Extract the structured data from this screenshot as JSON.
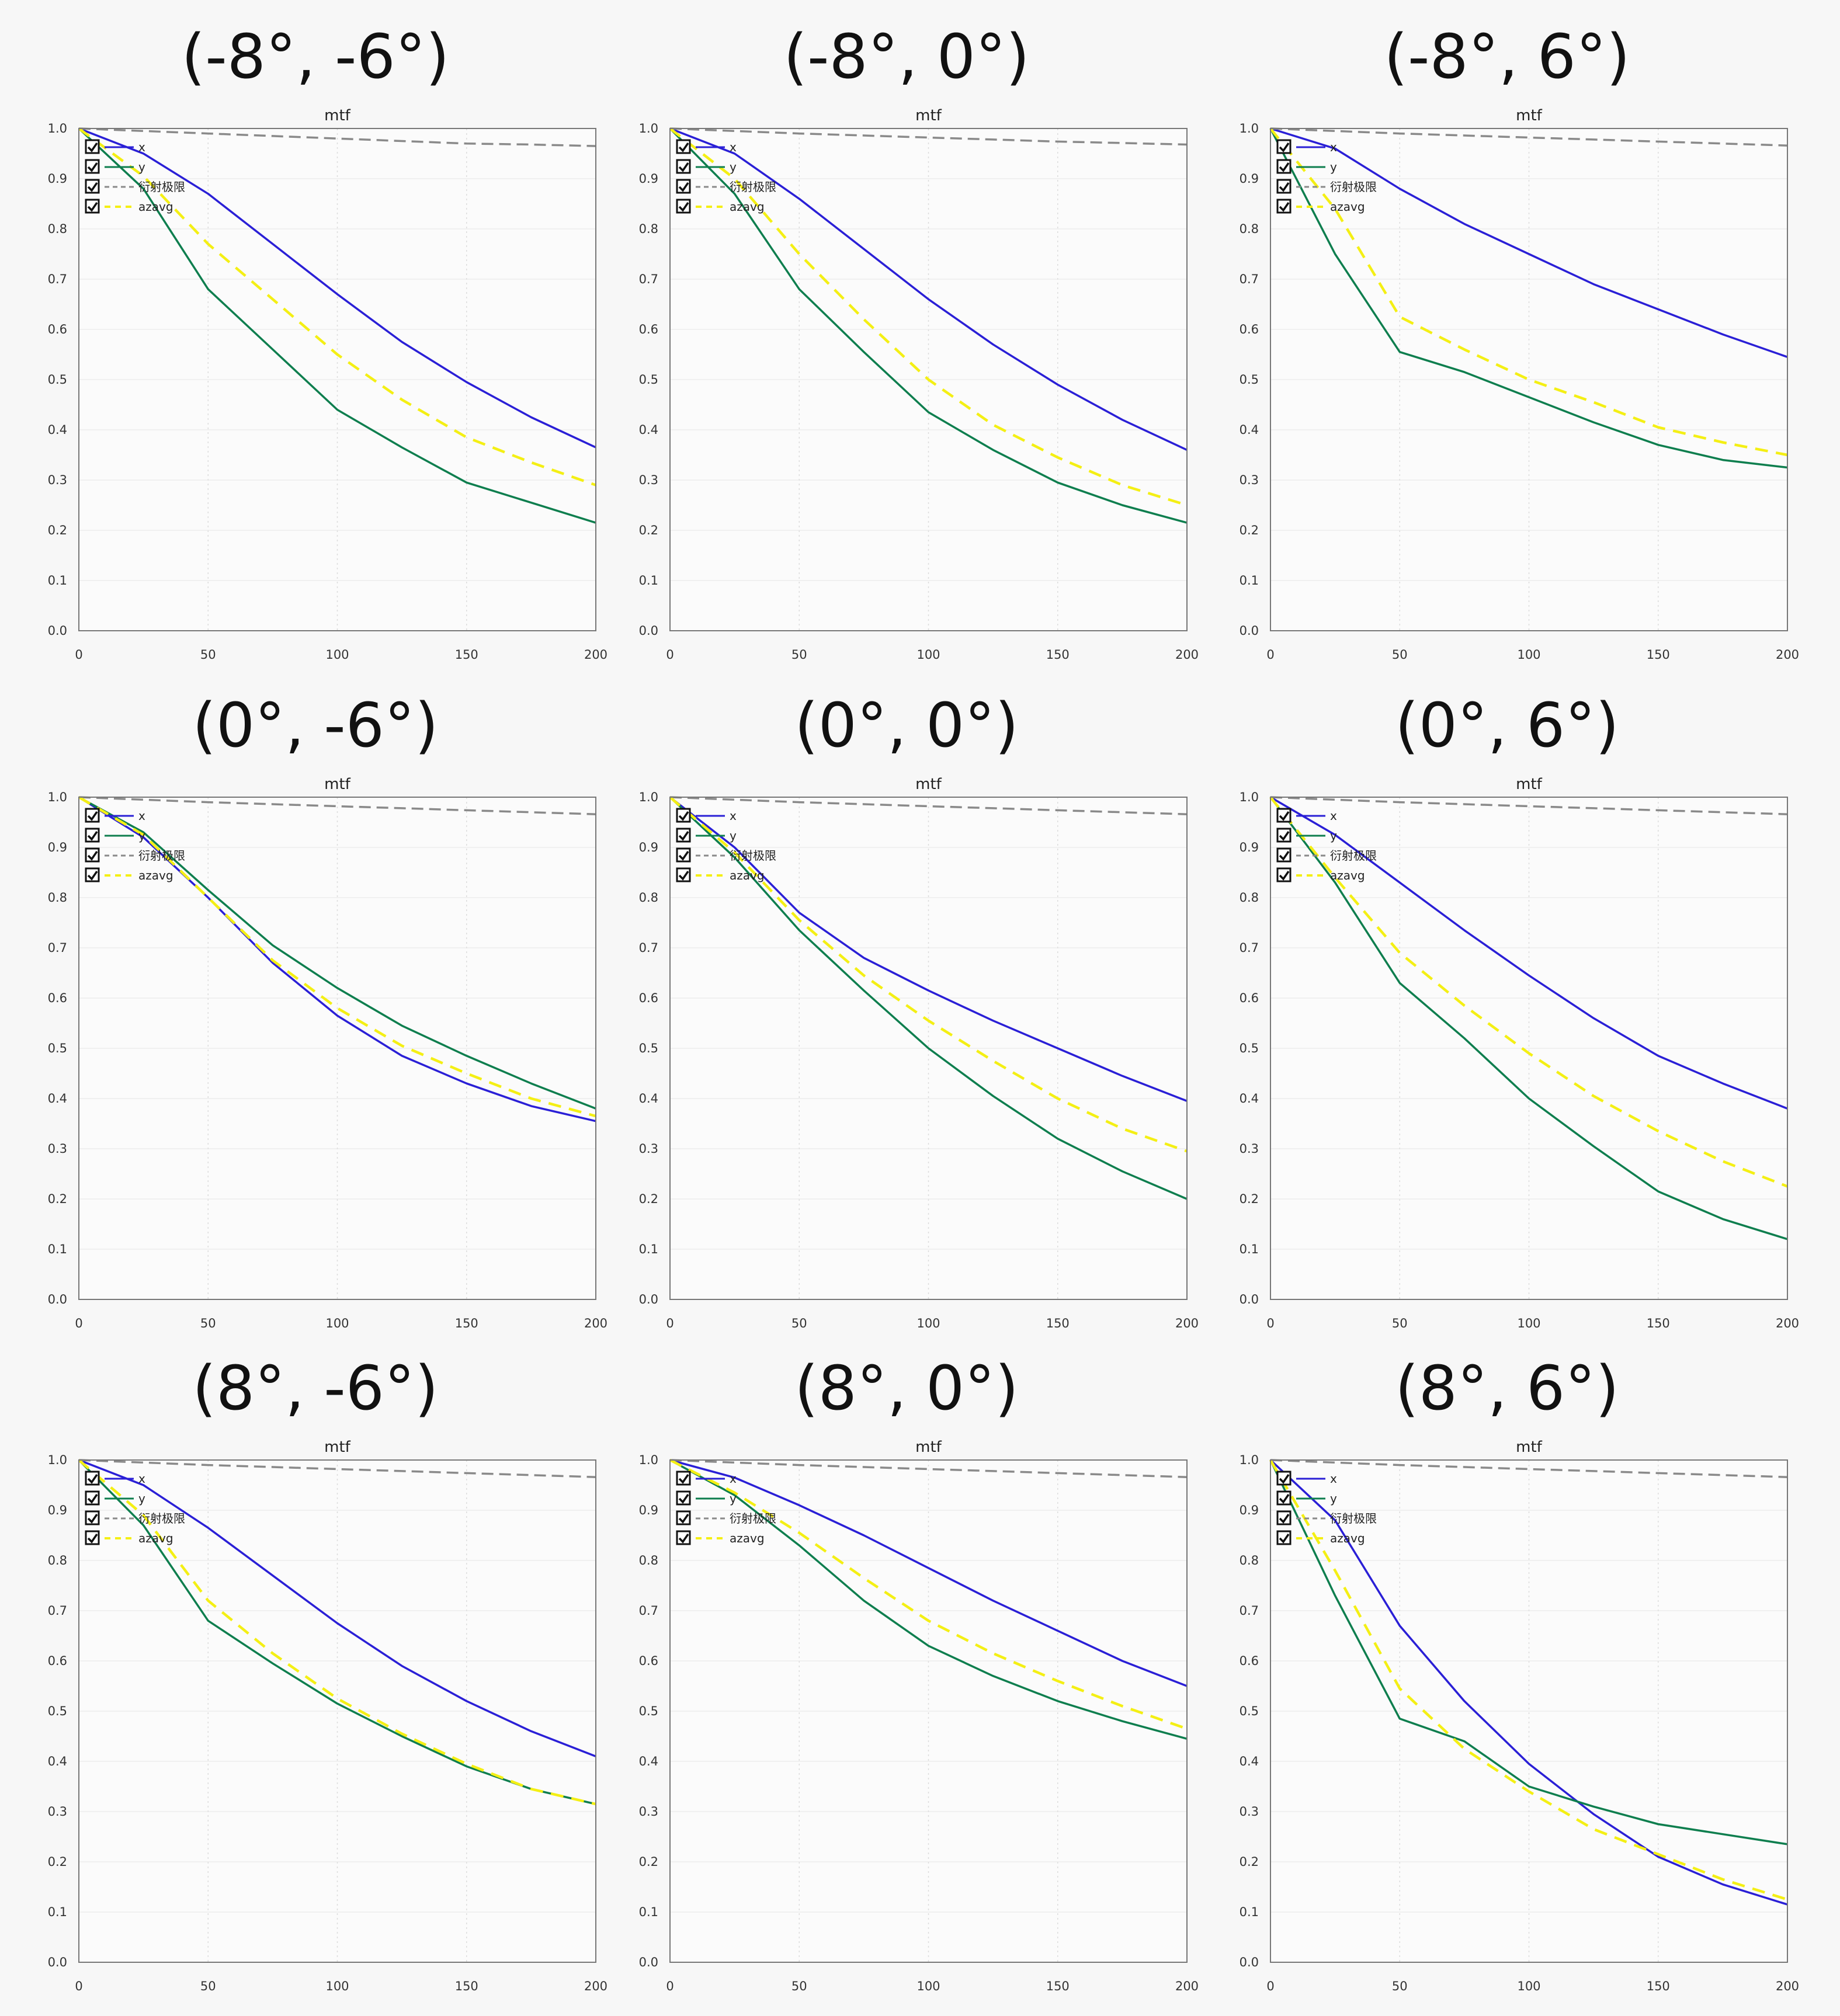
{
  "colors": {
    "x": "#2a1fd6",
    "y": "#0e7e4e",
    "limit": "#8a8a8a",
    "azavg": "#f4ef14",
    "frame": "#777777",
    "background": "#f7f7f7"
  },
  "legend": [
    "x",
    "y",
    "衍射极限",
    "azavg"
  ],
  "chart_data": [
    {
      "heading": "(-8°, -6°)",
      "title": "mtf",
      "type": "line",
      "x": [
        0,
        25,
        50,
        75,
        100,
        125,
        150,
        175,
        200
      ],
      "xticks": [
        0,
        50,
        100,
        150,
        200
      ],
      "yticks": [
        "0.0",
        "0.1",
        "0.2",
        "0.3",
        "0.4",
        "0.5",
        "0.6",
        "0.7",
        "0.8",
        "0.9",
        "1.0"
      ],
      "xlim": [
        0,
        200
      ],
      "ylim": [
        0,
        1
      ],
      "grid": true,
      "legend_position": "top-left",
      "series": [
        {
          "name": "x",
          "values": [
            1.0,
            0.95,
            0.87,
            0.77,
            0.67,
            0.575,
            0.495,
            0.425,
            0.365
          ]
        },
        {
          "name": "y",
          "values": [
            1.0,
            0.88,
            0.68,
            0.56,
            0.44,
            0.365,
            0.295,
            0.255,
            0.215
          ]
        },
        {
          "name": "衍射极限",
          "values": [
            1.0,
            0.995,
            0.99,
            0.985,
            0.98,
            0.975,
            0.97,
            0.968,
            0.965
          ]
        },
        {
          "name": "azavg",
          "values": [
            1.0,
            0.905,
            0.77,
            0.66,
            0.55,
            0.46,
            0.385,
            0.335,
            0.29
          ]
        }
      ]
    },
    {
      "heading": "(-8°, 0°)",
      "title": "mtf",
      "type": "line",
      "x": [
        0,
        25,
        50,
        75,
        100,
        125,
        150,
        175,
        200
      ],
      "xticks": [
        0,
        50,
        100,
        150,
        200
      ],
      "yticks": [
        "0.0",
        "0.1",
        "0.2",
        "0.3",
        "0.4",
        "0.5",
        "0.6",
        "0.7",
        "0.8",
        "0.9",
        "1.0"
      ],
      "xlim": [
        0,
        200
      ],
      "ylim": [
        0,
        1
      ],
      "grid": true,
      "legend_position": "top-left",
      "series": [
        {
          "name": "x",
          "values": [
            1.0,
            0.95,
            0.86,
            0.76,
            0.66,
            0.57,
            0.49,
            0.42,
            0.36
          ]
        },
        {
          "name": "y",
          "values": [
            1.0,
            0.87,
            0.68,
            0.555,
            0.435,
            0.36,
            0.295,
            0.25,
            0.215
          ]
        },
        {
          "name": "衍射极限",
          "values": [
            1.0,
            0.995,
            0.99,
            0.986,
            0.982,
            0.978,
            0.974,
            0.971,
            0.968
          ]
        },
        {
          "name": "azavg",
          "values": [
            1.0,
            0.9,
            0.75,
            0.62,
            0.5,
            0.41,
            0.345,
            0.29,
            0.25
          ]
        }
      ]
    },
    {
      "heading": "(-8°, 6°)",
      "title": "mtf",
      "type": "line",
      "x": [
        0,
        25,
        50,
        75,
        100,
        125,
        150,
        175,
        200
      ],
      "xticks": [
        0,
        50,
        100,
        150,
        200
      ],
      "yticks": [
        "0.0",
        "0.1",
        "0.2",
        "0.3",
        "0.4",
        "0.5",
        "0.6",
        "0.7",
        "0.8",
        "0.9",
        "1.0"
      ],
      "xlim": [
        0,
        200
      ],
      "ylim": [
        0,
        1
      ],
      "grid": true,
      "legend_position": "top-left",
      "series": [
        {
          "name": "x",
          "values": [
            1.0,
            0.96,
            0.88,
            0.81,
            0.75,
            0.69,
            0.64,
            0.59,
            0.545
          ]
        },
        {
          "name": "y",
          "values": [
            1.0,
            0.75,
            0.555,
            0.515,
            0.465,
            0.415,
            0.37,
            0.34,
            0.325
          ]
        },
        {
          "name": "衍射极限",
          "values": [
            1.0,
            0.995,
            0.99,
            0.986,
            0.982,
            0.978,
            0.974,
            0.97,
            0.966
          ]
        },
        {
          "name": "azavg",
          "values": [
            1.0,
            0.84,
            0.625,
            0.56,
            0.5,
            0.455,
            0.405,
            0.375,
            0.35
          ]
        }
      ]
    },
    {
      "heading": "(0°, -6°)",
      "title": "mtf",
      "type": "line",
      "x": [
        0,
        25,
        50,
        75,
        100,
        125,
        150,
        175,
        200
      ],
      "xticks": [
        0,
        50,
        100,
        150,
        200
      ],
      "yticks": [
        "0.0",
        "0.1",
        "0.2",
        "0.3",
        "0.4",
        "0.5",
        "0.6",
        "0.7",
        "0.8",
        "0.9",
        "1.0"
      ],
      "xlim": [
        0,
        200
      ],
      "ylim": [
        0,
        1
      ],
      "grid": true,
      "legend_position": "top-left",
      "series": [
        {
          "name": "x",
          "values": [
            1.0,
            0.92,
            0.8,
            0.67,
            0.565,
            0.485,
            0.43,
            0.385,
            0.355
          ]
        },
        {
          "name": "y",
          "values": [
            1.0,
            0.93,
            0.815,
            0.705,
            0.62,
            0.545,
            0.485,
            0.43,
            0.38
          ]
        },
        {
          "name": "衍射极限",
          "values": [
            1.0,
            0.995,
            0.99,
            0.986,
            0.982,
            0.978,
            0.974,
            0.97,
            0.966
          ]
        },
        {
          "name": "azavg",
          "values": [
            1.0,
            0.925,
            0.8,
            0.675,
            0.58,
            0.505,
            0.45,
            0.4,
            0.365
          ]
        }
      ]
    },
    {
      "heading": "(0°, 0°)",
      "title": "mtf",
      "type": "line",
      "x": [
        0,
        25,
        50,
        75,
        100,
        125,
        150,
        175,
        200
      ],
      "xticks": [
        0,
        50,
        100,
        150,
        200
      ],
      "yticks": [
        "0.0",
        "0.1",
        "0.2",
        "0.3",
        "0.4",
        "0.5",
        "0.6",
        "0.7",
        "0.8",
        "0.9",
        "1.0"
      ],
      "xlim": [
        0,
        200
      ],
      "ylim": [
        0,
        1
      ],
      "grid": true,
      "legend_position": "top-left",
      "series": [
        {
          "name": "x",
          "values": [
            1.0,
            0.9,
            0.77,
            0.68,
            0.615,
            0.555,
            0.5,
            0.445,
            0.395
          ]
        },
        {
          "name": "y",
          "values": [
            1.0,
            0.88,
            0.735,
            0.615,
            0.5,
            0.405,
            0.32,
            0.255,
            0.2
          ]
        },
        {
          "name": "衍射极限",
          "values": [
            1.0,
            0.995,
            0.99,
            0.986,
            0.982,
            0.978,
            0.974,
            0.97,
            0.966
          ]
        },
        {
          "name": "azavg",
          "values": [
            1.0,
            0.89,
            0.755,
            0.645,
            0.555,
            0.475,
            0.4,
            0.34,
            0.295
          ]
        }
      ]
    },
    {
      "heading": "(0°, 6°)",
      "title": "mtf",
      "type": "line",
      "x": [
        0,
        25,
        50,
        75,
        100,
        125,
        150,
        175,
        200
      ],
      "xticks": [
        0,
        50,
        100,
        150,
        200
      ],
      "yticks": [
        "0.0",
        "0.1",
        "0.2",
        "0.3",
        "0.4",
        "0.5",
        "0.6",
        "0.7",
        "0.8",
        "0.9",
        "1.0"
      ],
      "xlim": [
        0,
        200
      ],
      "ylim": [
        0,
        1
      ],
      "grid": true,
      "legend_position": "top-left",
      "series": [
        {
          "name": "x",
          "values": [
            1.0,
            0.925,
            0.83,
            0.735,
            0.645,
            0.56,
            0.485,
            0.43,
            0.38
          ]
        },
        {
          "name": "y",
          "values": [
            1.0,
            0.83,
            0.63,
            0.52,
            0.4,
            0.305,
            0.215,
            0.16,
            0.12
          ]
        },
        {
          "name": "衍射极限",
          "values": [
            1.0,
            0.995,
            0.99,
            0.986,
            0.982,
            0.978,
            0.974,
            0.97,
            0.966
          ]
        },
        {
          "name": "azavg",
          "values": [
            1.0,
            0.84,
            0.69,
            0.585,
            0.49,
            0.405,
            0.335,
            0.275,
            0.225
          ]
        }
      ]
    },
    {
      "heading": "(8°, -6°)",
      "title": "mtf",
      "type": "line",
      "x": [
        0,
        25,
        50,
        75,
        100,
        125,
        150,
        175,
        200
      ],
      "xticks": [
        0,
        50,
        100,
        150,
        200
      ],
      "yticks": [
        "0.0",
        "0.1",
        "0.2",
        "0.3",
        "0.4",
        "0.5",
        "0.6",
        "0.7",
        "0.8",
        "0.9",
        "1.0"
      ],
      "xlim": [
        0,
        200
      ],
      "ylim": [
        0,
        1
      ],
      "grid": true,
      "legend_position": "top-left",
      "series": [
        {
          "name": "x",
          "values": [
            1.0,
            0.95,
            0.865,
            0.77,
            0.675,
            0.59,
            0.52,
            0.46,
            0.41
          ]
        },
        {
          "name": "y",
          "values": [
            1.0,
            0.87,
            0.68,
            0.595,
            0.515,
            0.45,
            0.39,
            0.345,
            0.315
          ]
        },
        {
          "name": "衍射极限",
          "values": [
            1.0,
            0.995,
            0.99,
            0.986,
            0.982,
            0.978,
            0.974,
            0.97,
            0.966
          ]
        },
        {
          "name": "azavg",
          "values": [
            1.0,
            0.89,
            0.72,
            0.615,
            0.525,
            0.455,
            0.395,
            0.345,
            0.315
          ]
        }
      ]
    },
    {
      "heading": "(8°, 0°)",
      "title": "mtf",
      "type": "line",
      "x": [
        0,
        25,
        50,
        75,
        100,
        125,
        150,
        175,
        200
      ],
      "xticks": [
        0,
        50,
        100,
        150,
        200
      ],
      "yticks": [
        "0.0",
        "0.1",
        "0.2",
        "0.3",
        "0.4",
        "0.5",
        "0.6",
        "0.7",
        "0.8",
        "0.9",
        "1.0"
      ],
      "xlim": [
        0,
        200
      ],
      "ylim": [
        0,
        1
      ],
      "grid": true,
      "legend_position": "top-left",
      "series": [
        {
          "name": "x",
          "values": [
            1.0,
            0.965,
            0.91,
            0.85,
            0.785,
            0.72,
            0.66,
            0.6,
            0.55
          ]
        },
        {
          "name": "y",
          "values": [
            1.0,
            0.93,
            0.83,
            0.72,
            0.63,
            0.57,
            0.52,
            0.48,
            0.445
          ]
        },
        {
          "name": "衍射极限",
          "values": [
            1.0,
            0.995,
            0.99,
            0.986,
            0.982,
            0.978,
            0.974,
            0.97,
            0.966
          ]
        },
        {
          "name": "azavg",
          "values": [
            1.0,
            0.935,
            0.855,
            0.765,
            0.68,
            0.615,
            0.56,
            0.51,
            0.465
          ]
        }
      ]
    },
    {
      "heading": "(8°, 6°)",
      "title": "mtf",
      "type": "line",
      "x": [
        0,
        25,
        50,
        75,
        100,
        125,
        150,
        175,
        200
      ],
      "xticks": [
        0,
        50,
        100,
        150,
        200
      ],
      "yticks": [
        "0.0",
        "0.1",
        "0.2",
        "0.3",
        "0.4",
        "0.5",
        "0.6",
        "0.7",
        "0.8",
        "0.9",
        "1.0"
      ],
      "xlim": [
        0,
        200
      ],
      "ylim": [
        0,
        1
      ],
      "grid": true,
      "legend_position": "top-left",
      "series": [
        {
          "name": "x",
          "values": [
            1.0,
            0.88,
            0.67,
            0.52,
            0.395,
            0.295,
            0.21,
            0.155,
            0.115
          ]
        },
        {
          "name": "y",
          "values": [
            1.0,
            0.73,
            0.485,
            0.44,
            0.35,
            0.31,
            0.275,
            0.255,
            0.235
          ]
        },
        {
          "name": "衍射极限",
          "values": [
            1.0,
            0.995,
            0.99,
            0.986,
            0.982,
            0.978,
            0.974,
            0.97,
            0.966
          ]
        },
        {
          "name": "azavg",
          "values": [
            1.0,
            0.78,
            0.545,
            0.425,
            0.34,
            0.265,
            0.215,
            0.165,
            0.125
          ]
        }
      ]
    }
  ]
}
